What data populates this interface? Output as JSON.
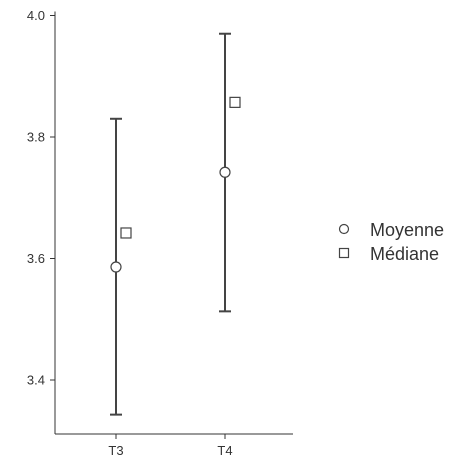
{
  "chart_data": {
    "type": "scatter",
    "title": "",
    "xlabel": "",
    "ylabel": "",
    "categories": [
      "T3",
      "T4"
    ],
    "ylim": [
      3.3,
      4.0
    ],
    "yticks": [
      3.4,
      3.6,
      3.8,
      4.0
    ],
    "ytick_labels": [
      "3.4",
      "3.6",
      "3.8",
      "4.0"
    ],
    "grid": false,
    "legend_position": "right",
    "legend": [
      "Moyenne",
      "Médiane"
    ],
    "series": [
      {
        "name": "Moyenne",
        "marker": "circle",
        "values": [
          3.586,
          3.742
        ]
      },
      {
        "name": "Médiane",
        "marker": "square",
        "values": [
          3.642,
          3.857
        ]
      }
    ],
    "error_bars": [
      {
        "category": "T3",
        "low": 3.343,
        "high": 3.83
      },
      {
        "category": "T4",
        "low": 3.513,
        "high": 3.97
      }
    ],
    "colors": {
      "axis": "#333333",
      "error_bar": "#444444",
      "marker_stroke": "#444444",
      "marker_fill": "#ffffff"
    }
  }
}
